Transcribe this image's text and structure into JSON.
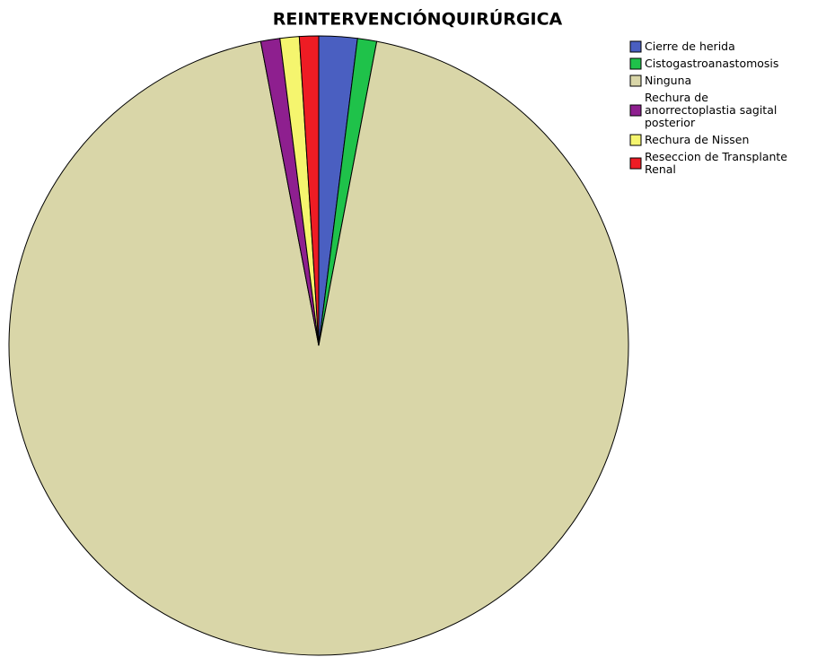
{
  "chart_data": {
    "type": "pie",
    "title": "REINTERVENCIÓNQUIRÚRGICA",
    "categories": [
      "Cierre de herida",
      "Cistogastroanastomosis",
      "Ninguna",
      "Rechura de anorrectoplastia sagital posterior",
      "Rechura de Nissen",
      "Reseccion de Transplante Renal"
    ],
    "values": [
      2,
      1,
      94,
      1,
      1,
      1
    ],
    "colors": [
      "#4a5fc1",
      "#1fc24a",
      "#d9d6a8",
      "#8e1f8f",
      "#f5f56e",
      "#ee1c24"
    ],
    "legend": "top-right"
  }
}
